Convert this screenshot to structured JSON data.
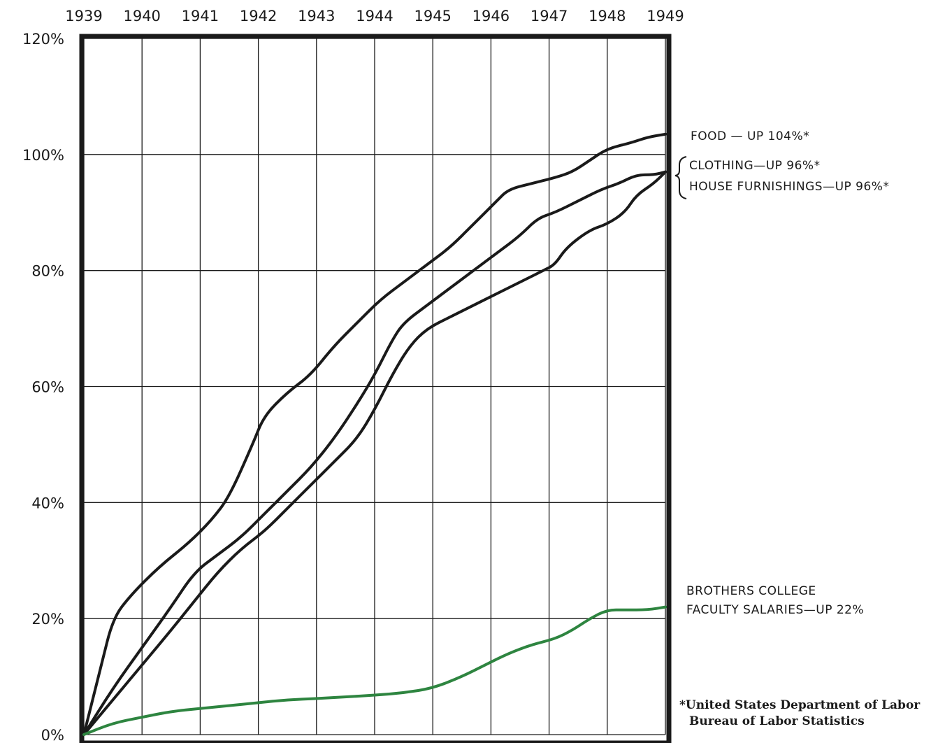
{
  "chart_data": {
    "type": "line",
    "x_ticks": [
      "1939",
      "1940",
      "1941",
      "1942",
      "1943",
      "1944",
      "1945",
      "1946",
      "1947",
      "1948",
      "1949"
    ],
    "y_ticks": [
      "0%",
      "20%",
      "40%",
      "60%",
      "80%",
      "100%",
      "120%"
    ],
    "ylim": [
      0,
      120
    ],
    "xlim": [
      1939,
      1949
    ],
    "grid": true,
    "series": [
      {
        "name": "FOOD — UP 104%*",
        "color": "#1a1a1a",
        "points": [
          [
            1939,
            0
          ],
          [
            1939.3,
            12
          ],
          [
            1939.5,
            20
          ],
          [
            1939.8,
            24
          ],
          [
            1940.3,
            29
          ],
          [
            1940.8,
            33
          ],
          [
            1941.2,
            37
          ],
          [
            1941.5,
            41
          ],
          [
            1941.9,
            50
          ],
          [
            1942.1,
            55
          ],
          [
            1942.5,
            59
          ],
          [
            1942.9,
            62
          ],
          [
            1943.3,
            67
          ],
          [
            1943.7,
            71
          ],
          [
            1944.1,
            75
          ],
          [
            1944.5,
            78
          ],
          [
            1944.9,
            81
          ],
          [
            1945.3,
            84
          ],
          [
            1945.7,
            88
          ],
          [
            1946.1,
            92
          ],
          [
            1946.3,
            94
          ],
          [
            1946.7,
            95
          ],
          [
            1947.1,
            96
          ],
          [
            1947.4,
            97
          ],
          [
            1947.7,
            99
          ],
          [
            1948.0,
            101
          ],
          [
            1948.4,
            102
          ],
          [
            1948.7,
            103
          ],
          [
            1949,
            103.5
          ]
        ]
      },
      {
        "name": "CLOTHING — UP 96%*",
        "color": "#1a1a1a",
        "points": [
          [
            1939,
            0
          ],
          [
            1939.5,
            8
          ],
          [
            1940.0,
            15
          ],
          [
            1940.5,
            22
          ],
          [
            1940.9,
            28
          ],
          [
            1941.3,
            31
          ],
          [
            1941.7,
            34
          ],
          [
            1942.1,
            38
          ],
          [
            1942.5,
            42
          ],
          [
            1942.9,
            46
          ],
          [
            1943.3,
            51
          ],
          [
            1943.7,
            57
          ],
          [
            1944.0,
            62
          ],
          [
            1944.3,
            68
          ],
          [
            1944.5,
            71
          ],
          [
            1944.9,
            74
          ],
          [
            1945.3,
            77
          ],
          [
            1945.7,
            80
          ],
          [
            1946.1,
            83
          ],
          [
            1946.5,
            86
          ],
          [
            1946.8,
            89
          ],
          [
            1947.1,
            90
          ],
          [
            1947.5,
            92
          ],
          [
            1947.9,
            94
          ],
          [
            1948.2,
            95
          ],
          [
            1948.5,
            96.5
          ],
          [
            1948.8,
            96.5
          ],
          [
            1949,
            97
          ]
        ]
      },
      {
        "name": "HOUSE FURNISHINGS — UP 96%*",
        "color": "#1a1a1a",
        "points": [
          [
            1939,
            0
          ],
          [
            1939.5,
            6
          ],
          [
            1940.0,
            12
          ],
          [
            1940.5,
            18
          ],
          [
            1940.9,
            23
          ],
          [
            1941.3,
            28
          ],
          [
            1941.7,
            32
          ],
          [
            1942.1,
            35
          ],
          [
            1942.5,
            39
          ],
          [
            1942.9,
            43
          ],
          [
            1943.3,
            47
          ],
          [
            1943.7,
            51
          ],
          [
            1944.0,
            56
          ],
          [
            1944.3,
            62
          ],
          [
            1944.6,
            67
          ],
          [
            1944.9,
            70
          ],
          [
            1945.3,
            72
          ],
          [
            1945.7,
            74
          ],
          [
            1946.1,
            76
          ],
          [
            1946.5,
            78
          ],
          [
            1946.9,
            80
          ],
          [
            1947.1,
            81
          ],
          [
            1947.3,
            84
          ],
          [
            1947.7,
            87
          ],
          [
            1948.0,
            88
          ],
          [
            1948.3,
            90
          ],
          [
            1948.5,
            93
          ],
          [
            1948.8,
            95
          ],
          [
            1949,
            97
          ]
        ]
      },
      {
        "name": "BROTHERS COLLEGE FACULTY SALARIES — UP 22%",
        "color": "#2e8540",
        "points": [
          [
            1939,
            0
          ],
          [
            1939.5,
            2
          ],
          [
            1940.0,
            3
          ],
          [
            1940.5,
            4
          ],
          [
            1941.0,
            4.5
          ],
          [
            1941.5,
            5
          ],
          [
            1942.0,
            5.5
          ],
          [
            1942.5,
            6
          ],
          [
            1943.0,
            6.2
          ],
          [
            1943.5,
            6.5
          ],
          [
            1944.0,
            6.8
          ],
          [
            1944.5,
            7.2
          ],
          [
            1945.0,
            8
          ],
          [
            1945.5,
            10
          ],
          [
            1945.9,
            12
          ],
          [
            1946.3,
            14
          ],
          [
            1946.7,
            15.5
          ],
          [
            1947.1,
            16.5
          ],
          [
            1947.4,
            18
          ],
          [
            1947.7,
            20
          ],
          [
            1948.0,
            21.5
          ],
          [
            1948.3,
            21.5
          ],
          [
            1948.7,
            21.5
          ],
          [
            1949,
            22
          ]
        ]
      }
    ],
    "labels": {
      "food": "FOOD — UP 104%*",
      "clothing": "CLOTHING—UP 96%*",
      "house": "HOUSE FURNISHINGS—UP 96%*",
      "salaries_line1": "BROTHERS COLLEGE",
      "salaries_line2": "FACULTY SALARIES—UP 22%",
      "source_line1": "*United States Department of Labor",
      "source_line2": "Bureau of Labor Statistics"
    }
  }
}
